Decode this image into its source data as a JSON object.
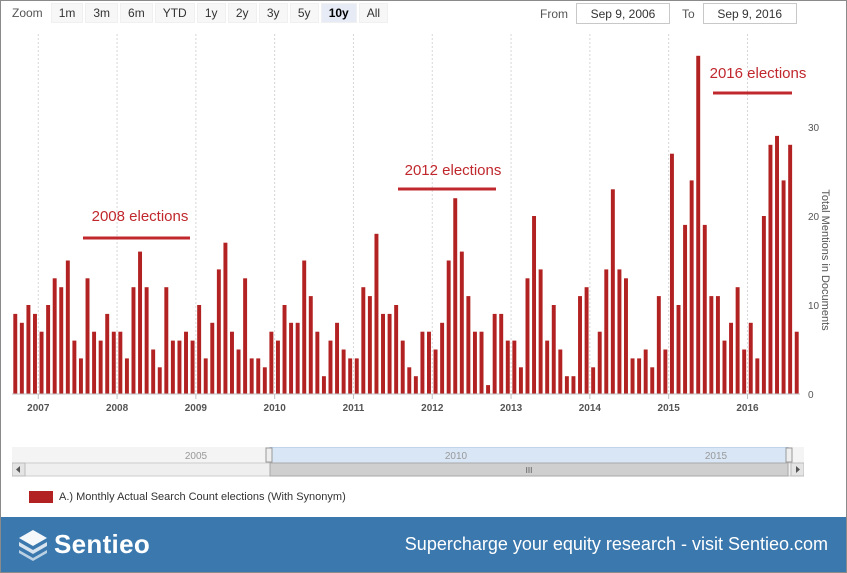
{
  "toolbar": {
    "zoom_label": "Zoom",
    "zoom_buttons": [
      "1m",
      "3m",
      "6m",
      "YTD",
      "1y",
      "2y",
      "3y",
      "5y",
      "10y",
      "All"
    ],
    "active_zoom": "10y",
    "from_label": "From",
    "from_value": "Sep 9, 2006",
    "to_label": "To",
    "to_value": "Sep 9, 2016"
  },
  "legend": {
    "label": "A.) Monthly Actual Search Count elections (With Synonym)"
  },
  "navigator": {
    "labels": [
      "2005",
      "2010",
      "2015"
    ],
    "scroll_glyph": "III"
  },
  "footer": {
    "brand": "Sentieo",
    "tagline": "Supercharge your equity research - visit Sentieo.com"
  },
  "colors": {
    "bar": "#b22222",
    "annotation": "#c0282d",
    "footer": "#3a78ae"
  },
  "chart_data": {
    "type": "bar",
    "ylabel": "Total Mentions in Documents",
    "ylim": [
      0,
      40
    ],
    "yticks": [
      0,
      10,
      20,
      30
    ],
    "grid": "vertical dotted at years",
    "x_start": "2006-09",
    "x_end": "2016-08",
    "xticks": [
      "2007",
      "2008",
      "2009",
      "2010",
      "2011",
      "2012",
      "2013",
      "2014",
      "2015",
      "2016"
    ],
    "series": [
      {
        "values": [
          9,
          8,
          10,
          9,
          7,
          10,
          13,
          12,
          15,
          6,
          4,
          13,
          7,
          6,
          9,
          7,
          7,
          4,
          12,
          16,
          12,
          5,
          3,
          12,
          6,
          6,
          7,
          6,
          10,
          4,
          8,
          14,
          17,
          7,
          5,
          13,
          4,
          4,
          3,
          7,
          6,
          10,
          8,
          8,
          15,
          11,
          7,
          2,
          6,
          8,
          5,
          4,
          4,
          12,
          11,
          18,
          9,
          9,
          10,
          6,
          3,
          2,
          7,
          7,
          5,
          8,
          15,
          22,
          16,
          11,
          7,
          7,
          1,
          9,
          9,
          6,
          6,
          3,
          13,
          20,
          14,
          6,
          10,
          5,
          2,
          2,
          11,
          12,
          3,
          7,
          14,
          23,
          14,
          13,
          4,
          4,
          5,
          3,
          11,
          5,
          27,
          10,
          19,
          24,
          38,
          19,
          11,
          11,
          6,
          8,
          12,
          5,
          8,
          4,
          20,
          28,
          29,
          24,
          28,
          7
        ]
      }
    ],
    "annotations": [
      {
        "label": "2008 elections"
      },
      {
        "label": "2012 elections"
      },
      {
        "label": "2016 elections"
      }
    ]
  }
}
